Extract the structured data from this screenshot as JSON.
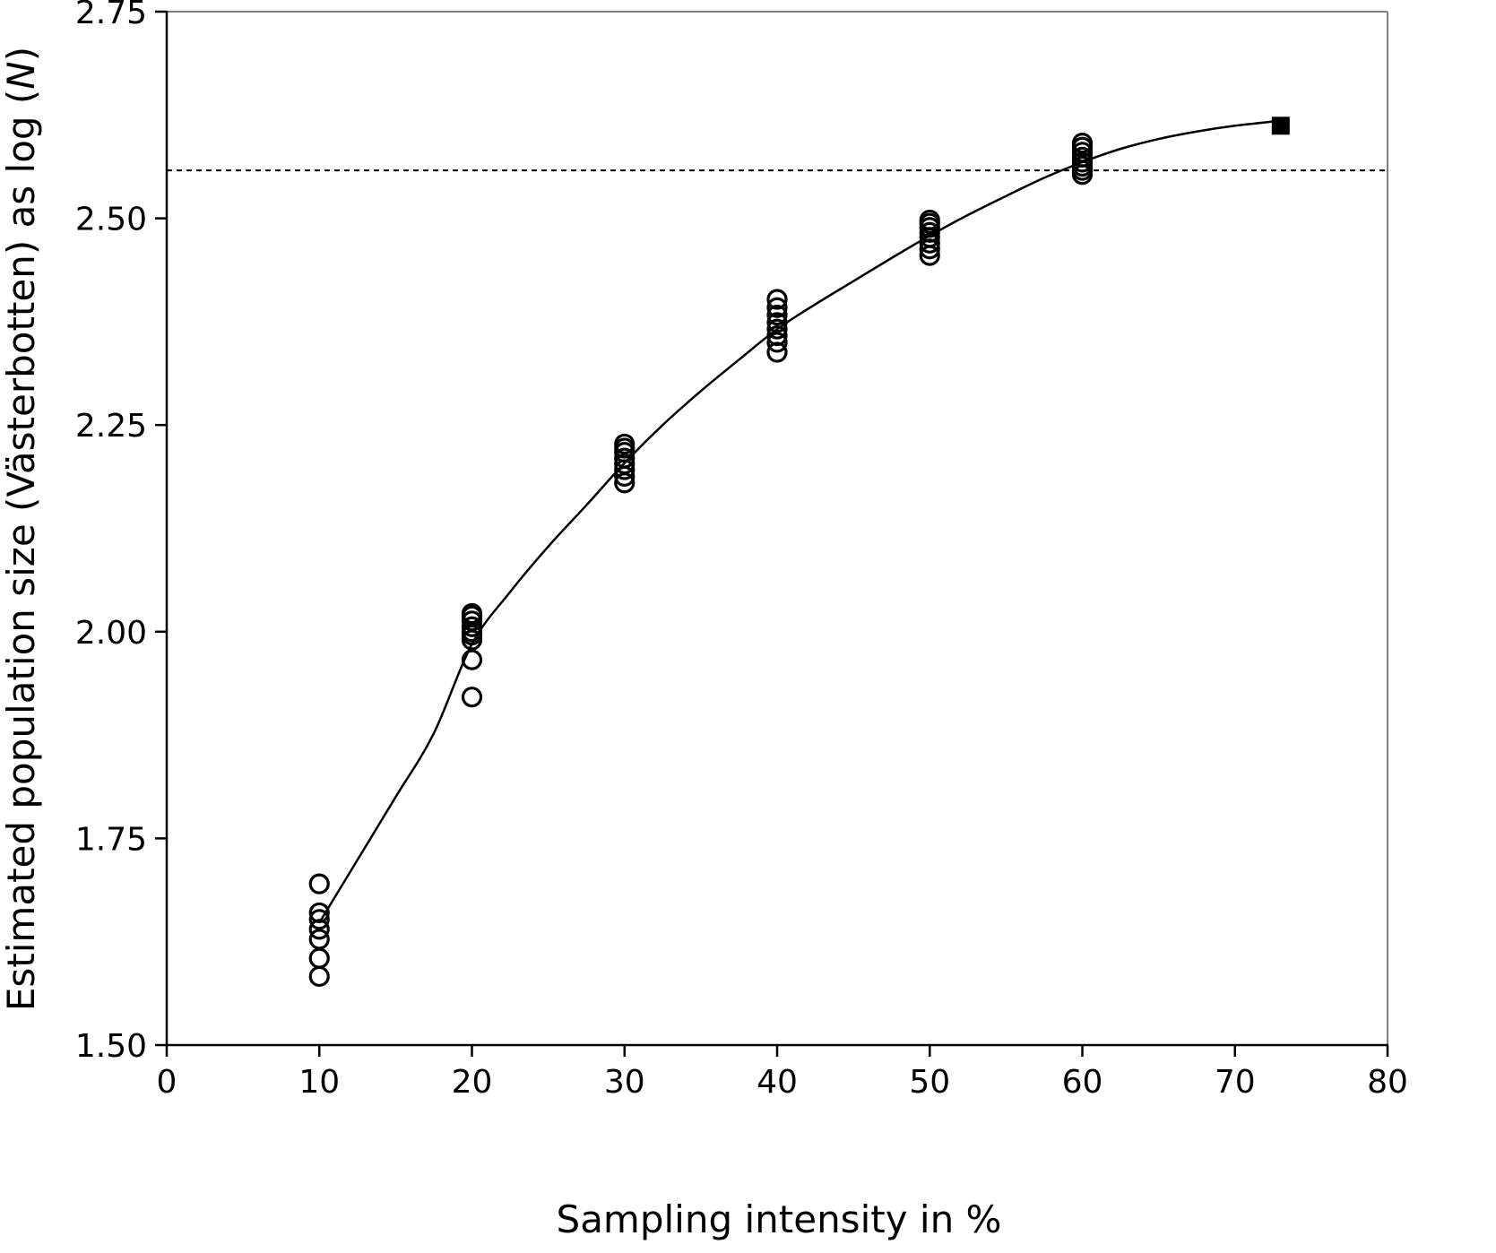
{
  "chart_data": {
    "type": "scatter",
    "xlabel": "Sampling intensity in %",
    "ylabel_main": "Estimated population size (Västerbotten) as log (",
    "ylabel_italic": "N",
    "ylabel_end": ")",
    "xlim": [
      0,
      80
    ],
    "ylim": [
      1.5,
      2.75
    ],
    "x_ticks": [
      0,
      10,
      20,
      30,
      40,
      50,
      60,
      70,
      80
    ],
    "x_tick_labels": [
      "0",
      "10",
      "20",
      "30",
      "40",
      "50",
      "60",
      "70",
      "80"
    ],
    "y_ticks": [
      1.5,
      1.75,
      2.0,
      2.25,
      2.5,
      2.75
    ],
    "y_tick_labels": [
      "1.50",
      "1.75",
      "2.00",
      "2.25",
      "2.50",
      "2.75"
    ],
    "grid": false,
    "colors": {
      "axis": "#000000",
      "frame": "#7f7f7f",
      "marker": "#000000",
      "curve": "#000000"
    },
    "series": [
      {
        "marker": "open-circle",
        "points": [
          [
            10,
            1.583
          ],
          [
            10,
            1.605
          ],
          [
            10,
            1.628
          ],
          [
            10,
            1.64
          ],
          [
            10,
            1.652
          ],
          [
            10,
            1.66
          ],
          [
            10,
            1.695
          ],
          [
            20,
            1.921
          ],
          [
            20,
            1.966
          ],
          [
            20,
            1.99
          ],
          [
            20,
            1.996
          ],
          [
            20,
            2.0
          ],
          [
            20,
            2.006
          ],
          [
            20,
            2.013
          ],
          [
            20,
            2.019
          ],
          [
            20,
            2.022
          ],
          [
            30,
            2.18
          ],
          [
            30,
            2.188
          ],
          [
            30,
            2.196
          ],
          [
            30,
            2.203
          ],
          [
            30,
            2.21
          ],
          [
            30,
            2.217
          ],
          [
            30,
            2.222
          ],
          [
            30,
            2.227
          ],
          [
            40,
            2.338
          ],
          [
            40,
            2.35
          ],
          [
            40,
            2.358
          ],
          [
            40,
            2.366
          ],
          [
            40,
            2.374
          ],
          [
            40,
            2.383
          ],
          [
            40,
            2.392
          ],
          [
            40,
            2.402
          ],
          [
            50,
            2.455
          ],
          [
            50,
            2.463
          ],
          [
            50,
            2.47
          ],
          [
            50,
            2.477
          ],
          [
            50,
            2.483
          ],
          [
            50,
            2.489
          ],
          [
            50,
            2.494
          ],
          [
            50,
            2.498
          ],
          [
            60,
            2.553
          ],
          [
            60,
            2.558
          ],
          [
            60,
            2.563
          ],
          [
            60,
            2.568
          ],
          [
            60,
            2.574
          ],
          [
            60,
            2.58
          ],
          [
            60,
            2.586
          ],
          [
            60,
            2.591
          ]
        ]
      },
      {
        "marker": "filled-square",
        "points": [
          [
            73,
            2.612
          ]
        ]
      }
    ],
    "fit_curve": {
      "style": "solid",
      "points": [
        [
          10,
          1.648
        ],
        [
          12.5,
          1.724
        ],
        [
          15,
          1.8
        ],
        [
          17.5,
          1.877
        ],
        [
          20,
          1.985
        ],
        [
          22.5,
          2.048
        ],
        [
          25,
          2.103
        ],
        [
          27.5,
          2.153
        ],
        [
          30,
          2.204
        ],
        [
          32.5,
          2.25
        ],
        [
          35,
          2.291
        ],
        [
          37.5,
          2.329
        ],
        [
          40,
          2.366
        ],
        [
          42.5,
          2.396
        ],
        [
          45,
          2.424
        ],
        [
          47.5,
          2.452
        ],
        [
          50,
          2.479
        ],
        [
          52.5,
          2.504
        ],
        [
          55,
          2.527
        ],
        [
          57.5,
          2.549
        ],
        [
          60,
          2.568
        ],
        [
          62.5,
          2.584
        ],
        [
          65,
          2.596
        ],
        [
          67.5,
          2.605
        ],
        [
          70,
          2.612
        ],
        [
          72.5,
          2.617
        ]
      ]
    },
    "reference_line": {
      "style": "dashed",
      "y": 2.558
    }
  }
}
